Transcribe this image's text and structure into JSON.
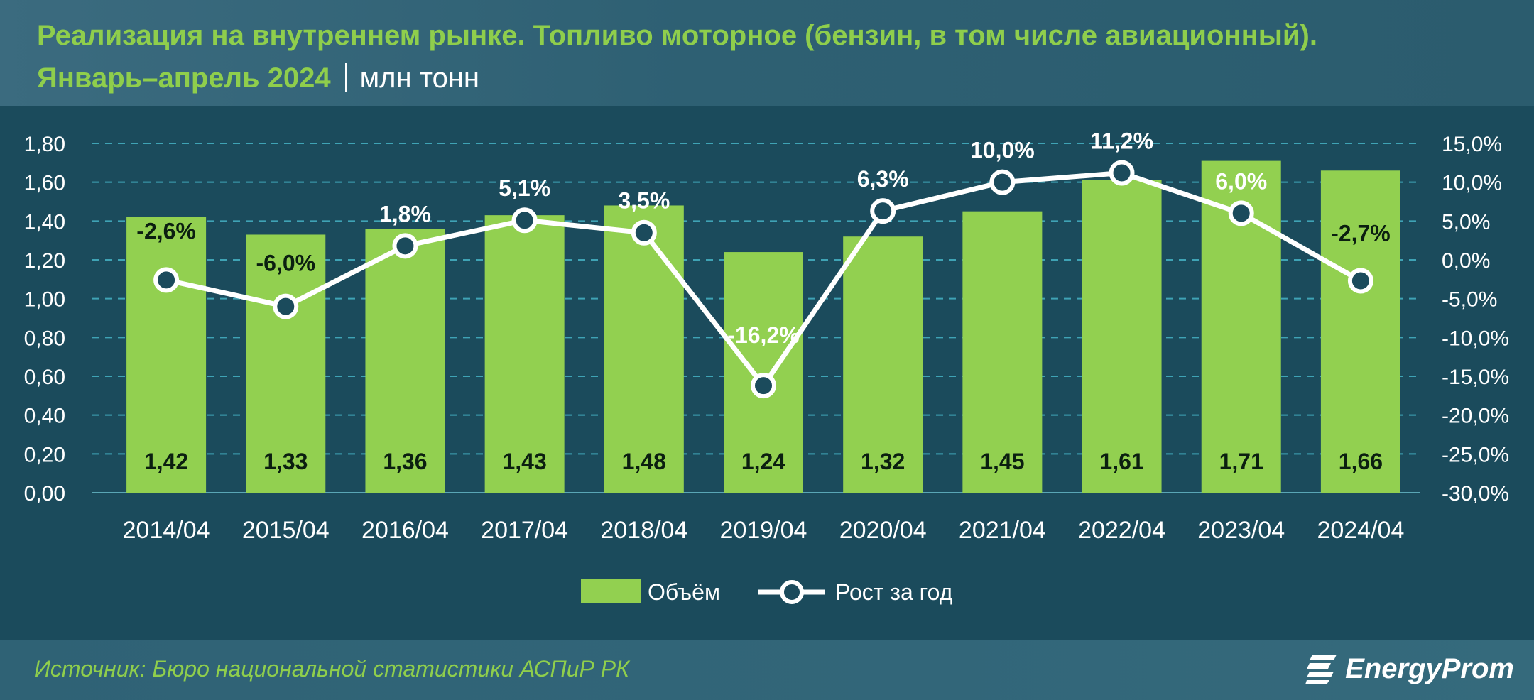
{
  "header": {
    "title_line1": "Реализация на внутреннем рынке. Топливо моторное (бензин, в том числе авиационный).",
    "title_line2": "Январь–апрель 2024",
    "unit": "млн тонн"
  },
  "footer": {
    "source": "Источник: Бюро национальной статистики АСПиР РК",
    "brand": "EnergyProm"
  },
  "colors": {
    "bar": "#92d050",
    "line": "#ffffff",
    "title": "#8fce4c",
    "background": "#1b4b5c"
  },
  "chart_data": {
    "type": "bar",
    "categories": [
      "2014/04",
      "2015/04",
      "2016/04",
      "2017/04",
      "2018/04",
      "2019/04",
      "2020/04",
      "2021/04",
      "2022/04",
      "2023/04",
      "2024/04"
    ],
    "series": [
      {
        "name": "Объём",
        "type": "bar",
        "axis": "left",
        "values": [
          1.42,
          1.33,
          1.36,
          1.43,
          1.48,
          1.24,
          1.32,
          1.45,
          1.61,
          1.71,
          1.66
        ],
        "labels": [
          "1,42",
          "1,33",
          "1,36",
          "1,43",
          "1,48",
          "1,24",
          "1,32",
          "1,45",
          "1,61",
          "1,71",
          "1,66"
        ]
      },
      {
        "name": "Рост за год",
        "type": "line",
        "axis": "right",
        "values": [
          -2.6,
          -6.0,
          1.8,
          5.1,
          3.5,
          -16.2,
          6.3,
          10.0,
          11.2,
          6.0,
          -2.7
        ],
        "labels": [
          "-2,6%",
          "-6,0%",
          "1,8%",
          "5,1%",
          "3,5%",
          "-16,2%",
          "6,3%",
          "10,0%",
          "11,2%",
          "6,0%",
          "-2,7%"
        ]
      }
    ],
    "y_left": {
      "range": [
        0,
        1.8
      ],
      "ticks": [
        "0,00",
        "0,20",
        "0,40",
        "0,60",
        "0,80",
        "1,00",
        "1,20",
        "1,40",
        "1,60",
        "1,80"
      ]
    },
    "y_right": {
      "range": [
        -30,
        15
      ],
      "ticks": [
        "-30,0%",
        "-25,0%",
        "-20,0%",
        "-15,0%",
        "-10,0%",
        "-5,0%",
        "0,0%",
        "5,0%",
        "10,0%",
        "15,0%"
      ]
    },
    "grid": "dashed horizontal",
    "legend_position": "bottom-center"
  }
}
